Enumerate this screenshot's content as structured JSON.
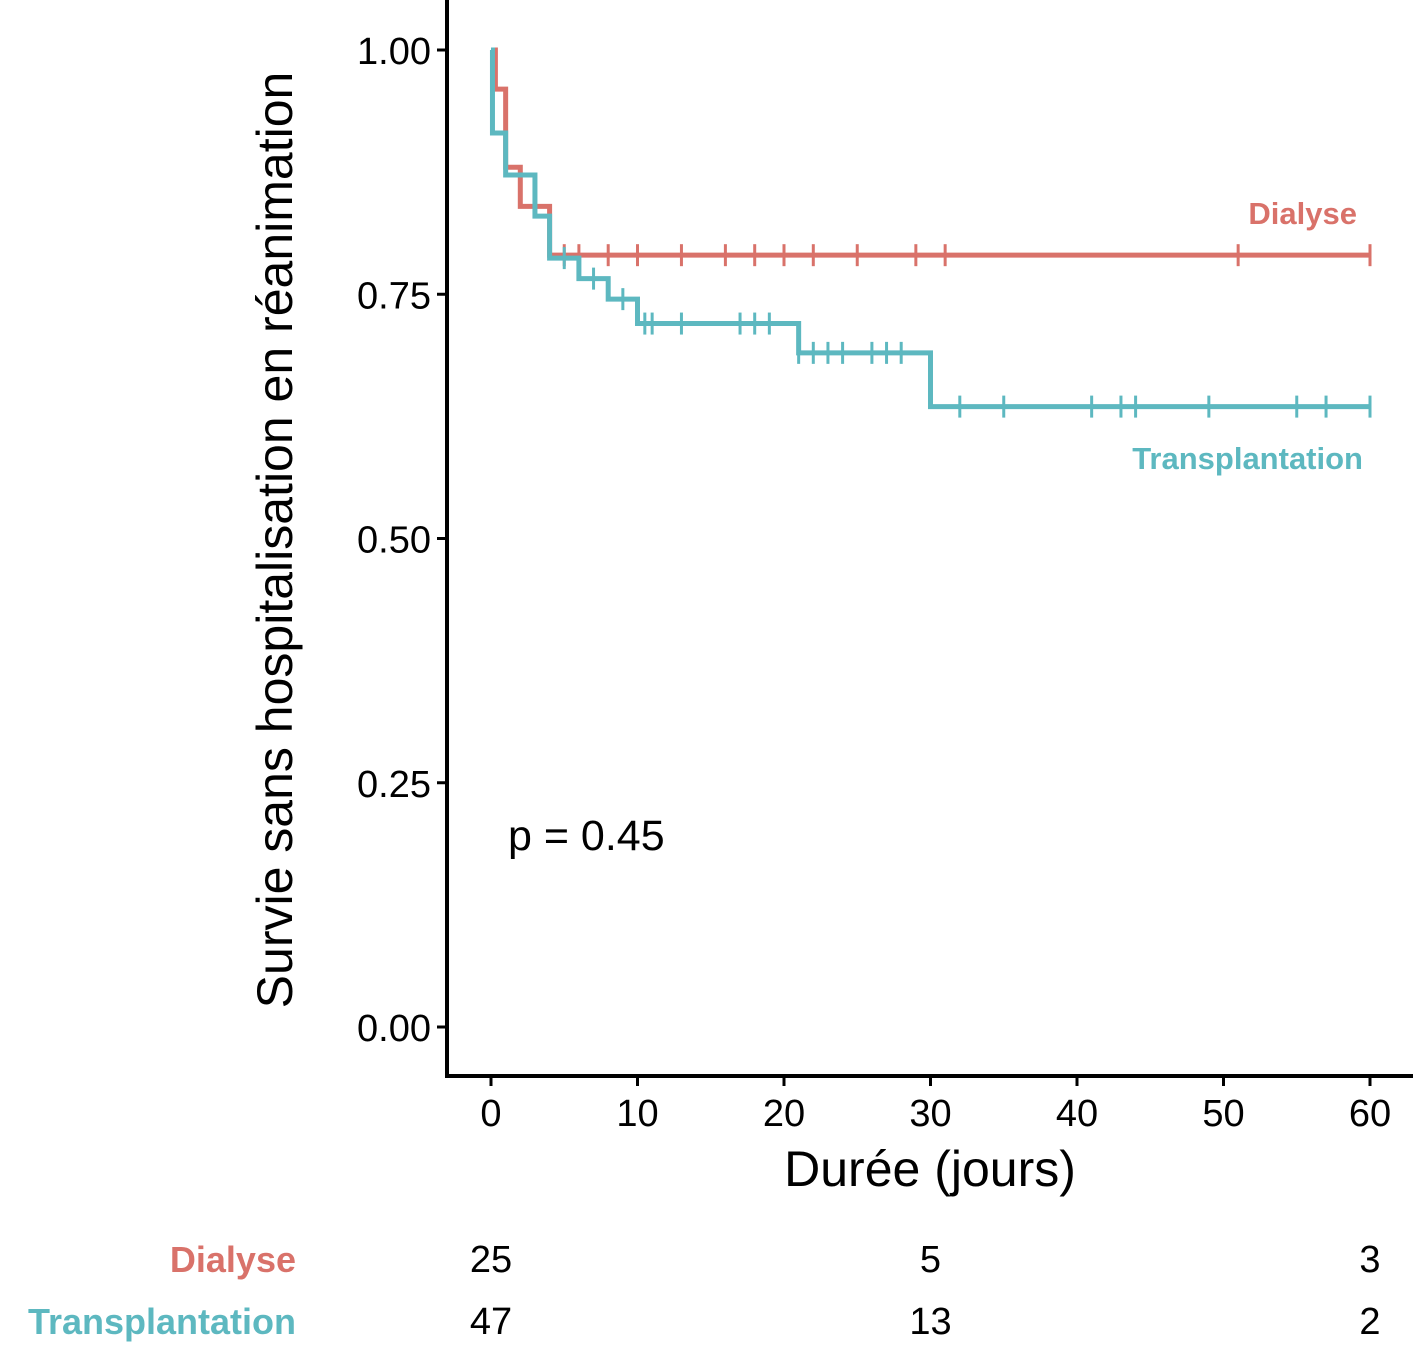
{
  "chart_data": {
    "type": "line",
    "subtype": "kaplan-meier-step",
    "xlabel": "Durée (jours)",
    "ylabel": "Survie sans hospitalisation en réanimation",
    "xlim": [
      0,
      60
    ],
    "ylim": [
      0,
      1
    ],
    "x_ticks": [
      "0",
      "10",
      "20",
      "30",
      "40",
      "50",
      "60"
    ],
    "y_ticks": [
      "0.00",
      "0.25",
      "0.50",
      "0.75",
      "1.00"
    ],
    "grid": false,
    "legend": "inline labels at right end of curves",
    "annotation": "p = 0.45",
    "series": [
      {
        "name": "Dialyse",
        "color": "#D9726A",
        "steps": [
          [
            0,
            1.0
          ],
          [
            0.3,
            0.96
          ],
          [
            1,
            0.88
          ],
          [
            2,
            0.84
          ],
          [
            4,
            0.79
          ],
          [
            60,
            0.79
          ]
        ],
        "censor_times": [
          5,
          6,
          8,
          10,
          13,
          16,
          18,
          20,
          22,
          25,
          29,
          31,
          51,
          60
        ]
      },
      {
        "name": "Transplantation",
        "color": "#5DB8C0",
        "steps": [
          [
            0,
            1.0
          ],
          [
            0.1,
            0.915
          ],
          [
            1,
            0.872
          ],
          [
            3,
            0.83
          ],
          [
            4,
            0.787
          ],
          [
            6,
            0.766
          ],
          [
            8,
            0.745
          ],
          [
            10,
            0.72
          ],
          [
            21,
            0.69
          ],
          [
            30,
            0.635
          ],
          [
            60,
            0.635
          ]
        ],
        "censor_times": [
          5,
          7,
          9,
          10.5,
          11,
          13,
          17,
          18,
          19,
          21,
          22,
          23,
          24,
          26,
          27,
          28,
          32,
          35,
          41,
          43,
          44,
          49,
          55,
          57,
          60
        ]
      }
    ],
    "risk_table": {
      "times": [
        0,
        30,
        60
      ],
      "rows": [
        {
          "label": "Dialyse",
          "values": [
            "25",
            "5",
            "3"
          ]
        },
        {
          "label": "Transplantation",
          "values": [
            "47",
            "13",
            "2"
          ]
        }
      ]
    }
  }
}
